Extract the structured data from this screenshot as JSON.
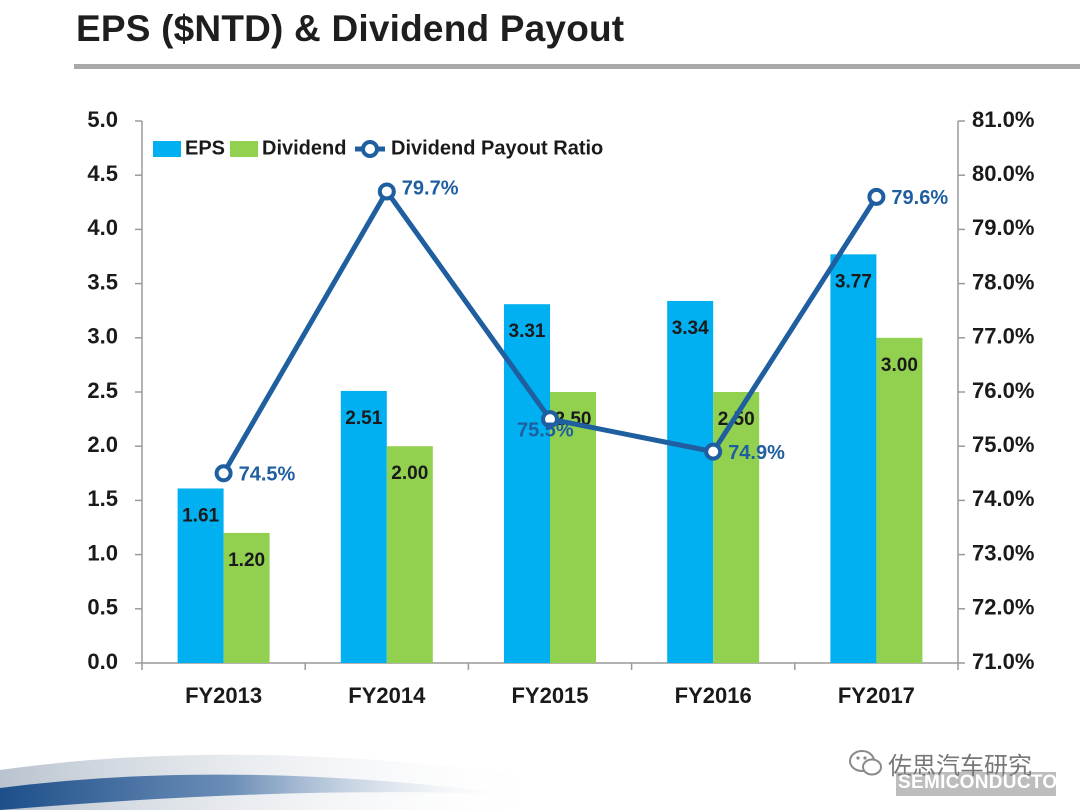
{
  "page": {
    "title": "EPS ($NTD) & Dividend Payout"
  },
  "watermark": {
    "text": "佐思汽车研究",
    "company": "SEMICONDUCTOR"
  },
  "colors": {
    "eps": "#00b0f0",
    "dividend": "#92d050",
    "ratio": "#1f5fa0"
  },
  "chart_data": {
    "type": "bar",
    "categories": [
      "FY2013",
      "FY2014",
      "FY2015",
      "FY2016",
      "FY2017"
    ],
    "series": [
      {
        "name": "EPS",
        "type": "bar",
        "axis": "left",
        "values": [
          1.61,
          2.51,
          3.31,
          3.34,
          3.77
        ],
        "labels": [
          "1.61",
          "2.51",
          "3.31",
          "3.34",
          "3.77"
        ]
      },
      {
        "name": "Dividend",
        "type": "bar",
        "axis": "left",
        "values": [
          1.2,
          2.0,
          2.5,
          2.5,
          3.0
        ],
        "labels": [
          "1.20",
          "2.00",
          "2.50",
          "2.50",
          "3.00"
        ]
      },
      {
        "name": "Dividend Payout Ratio",
        "type": "line",
        "axis": "right",
        "values": [
          74.5,
          79.7,
          75.5,
          74.9,
          79.6
        ],
        "labels": [
          "74.5%",
          "79.7%",
          "75.5%",
          "74.9%",
          "79.6%"
        ]
      }
    ],
    "y_left": {
      "min": 0,
      "max": 5,
      "step": 0.5,
      "ticks": [
        "0.0",
        "0.5",
        "1.0",
        "1.5",
        "2.0",
        "2.5",
        "3.0",
        "3.5",
        "4.0",
        "4.5",
        "5.0"
      ]
    },
    "y_right": {
      "min": 71,
      "max": 81,
      "step": 1,
      "ticks": [
        "71.0%",
        "72.0%",
        "73.0%",
        "74.0%",
        "75.0%",
        "76.0%",
        "77.0%",
        "78.0%",
        "79.0%",
        "80.0%",
        "81.0%"
      ]
    },
    "legend_position": "top-left",
    "grid": false
  }
}
